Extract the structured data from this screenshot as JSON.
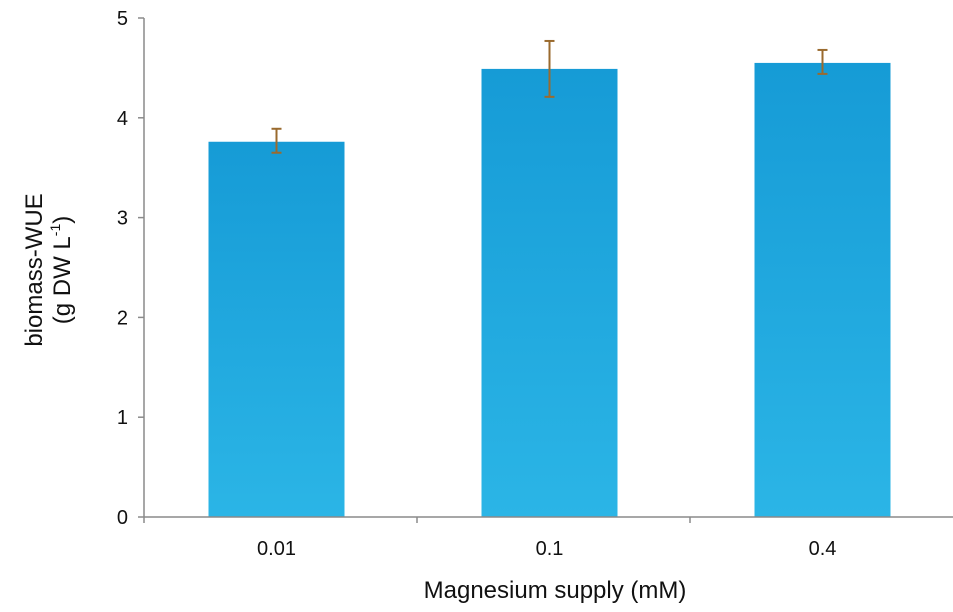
{
  "chart_data": {
    "type": "bar",
    "categories": [
      "0.01",
      "0.1",
      "0.4"
    ],
    "values": [
      3.76,
      4.49,
      4.55
    ],
    "error_upper": [
      3.89,
      4.77,
      4.68
    ],
    "error_lower": [
      3.65,
      4.21,
      4.44
    ],
    "xlabel": "Magnesium supply (mM)",
    "ylabel_line1": "biomass-WUE",
    "ylabel_line2_prefix": "(g DW L",
    "ylabel_line2_sup": "-1",
    "ylabel_line2_suffix": ")",
    "ylim": [
      0,
      5
    ],
    "yticks": [
      "0",
      "1",
      "2",
      "3",
      "4",
      "5"
    ],
    "grid": false,
    "legend": "none",
    "colors": {
      "bar_top": "#169bd6",
      "bar_bottom": "#2bb5e6",
      "error_bar": "#9a6a2e",
      "axis": "#8a8a8a"
    }
  }
}
